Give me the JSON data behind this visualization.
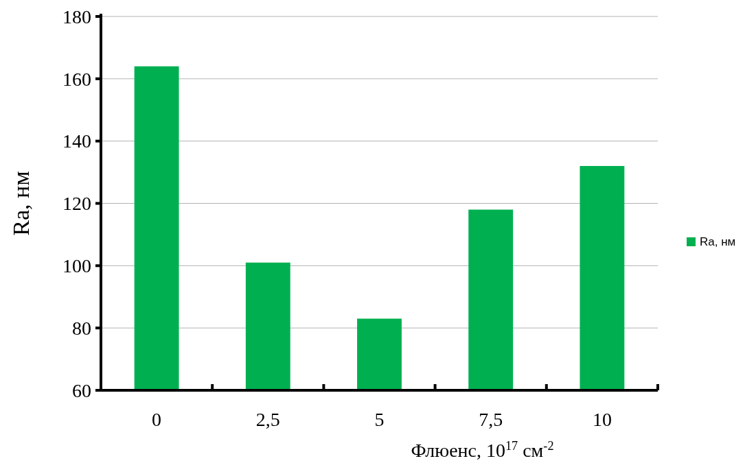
{
  "chart_data": {
    "type": "bar",
    "xlabel": "Флюенс, 10$^{17}$ см$^{-2}$",
    "ylabel": "Ra, нм",
    "categories": [
      "0",
      "2,5",
      "5",
      "7,5",
      "10"
    ],
    "series": [
      {
        "name": "Ra, нм",
        "color": "#00b050",
        "values": [
          164,
          101,
          83,
          118,
          132
        ]
      }
    ],
    "ylim": [
      60,
      180
    ],
    "yticks": [
      60,
      80,
      100,
      120,
      140,
      160,
      180
    ],
    "grid": "y",
    "legend": "right"
  }
}
